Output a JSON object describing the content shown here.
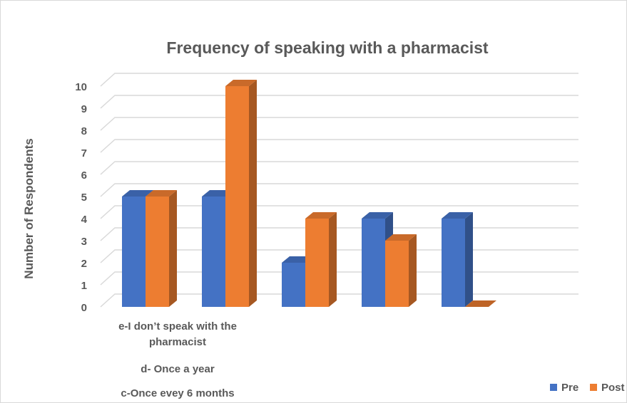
{
  "chart_data": {
    "type": "bar",
    "title": "Frequency of speaking with a pharmacist",
    "xlabel": "",
    "ylabel": "Number of Respondents",
    "ylim": [
      0,
      10
    ],
    "yticks": [
      0,
      1,
      2,
      3,
      4,
      5,
      6,
      7,
      8,
      9,
      10
    ],
    "grid": true,
    "legend": "bottom-right",
    "category_labels_visible": [
      "e-I don’t speak with the pharmacist",
      "d- Once a year",
      "c-Once evey 6 months"
    ],
    "categories": [
      "e-I don’t speak with the pharmacist",
      "d- Once a year",
      "c-Once evey 6 months",
      "",
      ""
    ],
    "series": [
      {
        "name": "Pre",
        "color": "#4472c4",
        "values": [
          5,
          5,
          2,
          4,
          4
        ]
      },
      {
        "name": "Post",
        "color": "#ed7d31",
        "values": [
          5,
          10,
          4,
          3,
          0
        ]
      }
    ]
  }
}
